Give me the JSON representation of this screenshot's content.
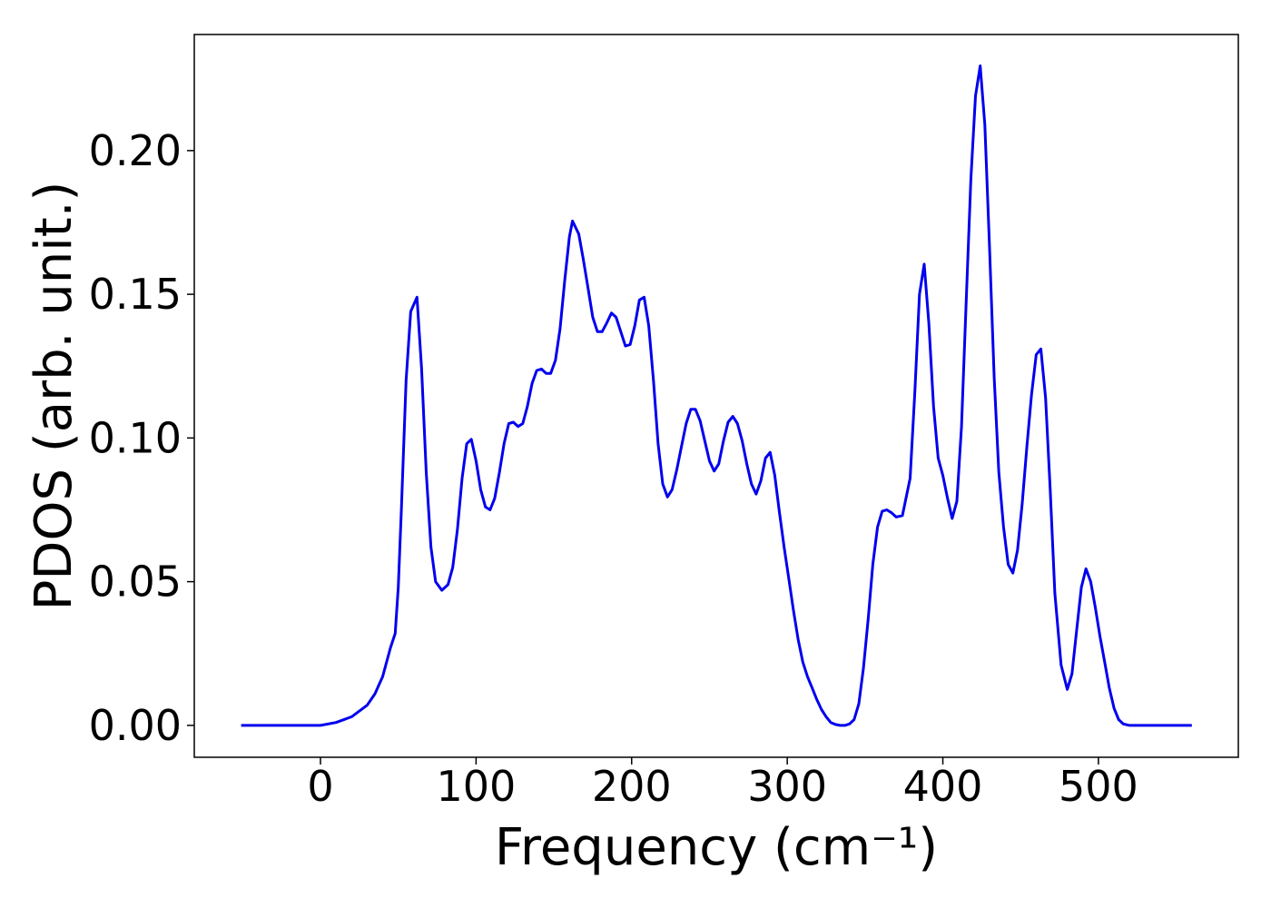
{
  "chart_data": {
    "type": "line",
    "xlabel": "Frequency (cm⁻¹)",
    "ylabel": "PDOS (arb. unit.)",
    "xlim": [
      -81.1,
      589.9
    ],
    "ylim": [
      -0.0111,
      0.2404
    ],
    "xticks": [
      0,
      100,
      200,
      300,
      400,
      500
    ],
    "yticks": [
      {
        "value": 0,
        "label": "0.00"
      },
      {
        "value": 0.05,
        "label": "0.05"
      },
      {
        "value": 0.1,
        "label": "0.10"
      },
      {
        "value": 0.15,
        "label": "0.15"
      },
      {
        "value": 0.2,
        "label": "0.20"
      }
    ],
    "series": [
      {
        "color": "#0000ee",
        "x": [
          -51,
          0,
          10,
          20,
          30,
          35,
          40,
          45,
          48,
          50,
          52,
          55,
          58,
          62,
          65,
          68,
          71,
          74,
          78,
          82,
          85,
          88,
          91,
          94,
          97,
          100,
          103,
          106,
          109,
          112,
          115,
          118,
          121,
          124,
          127,
          130,
          133,
          136,
          139,
          142,
          145,
          148,
          151,
          154,
          157,
          160,
          162,
          166,
          169,
          172,
          175,
          178,
          181,
          184,
          187,
          190,
          193,
          196,
          199,
          202,
          205,
          208,
          211,
          214,
          217,
          220,
          223,
          226,
          229,
          232,
          235,
          238,
          241,
          244,
          247,
          250,
          253,
          256,
          259,
          262,
          265,
          268,
          271,
          274,
          277,
          280,
          283,
          286,
          289,
          292,
          295,
          298,
          301,
          304,
          307,
          310,
          313,
          316,
          319,
          322,
          325,
          328,
          331,
          334,
          337,
          340,
          343,
          346,
          349,
          352,
          355,
          358,
          361,
          364,
          367,
          370,
          374,
          379,
          382,
          385,
          388,
          391,
          394,
          397,
          400,
          403,
          406,
          409,
          412,
          415,
          418,
          421,
          424,
          427,
          430,
          433,
          436,
          439,
          442,
          445,
          448,
          451,
          454,
          457,
          460,
          463,
          466,
          469,
          472,
          476,
          480,
          483,
          486,
          489,
          492,
          495,
          498,
          501,
          504,
          507,
          510,
          513,
          516,
          520,
          560
        ],
        "values": [
          0,
          0,
          0.001,
          0.003,
          0.007,
          0.011,
          0.017,
          0.027,
          0.032,
          0.048,
          0.075,
          0.12,
          0.144,
          0.149,
          0.124,
          0.088,
          0.062,
          0.05,
          0.047,
          0.049,
          0.055,
          0.068,
          0.086,
          0.098,
          0.0995,
          0.092,
          0.082,
          0.076,
          0.075,
          0.079,
          0.088,
          0.098,
          0.105,
          0.1055,
          0.104,
          0.105,
          0.111,
          0.119,
          0.1235,
          0.124,
          0.1225,
          0.1225,
          0.127,
          0.138,
          0.155,
          0.17,
          0.1755,
          0.171,
          0.162,
          0.152,
          0.142,
          0.137,
          0.137,
          0.14,
          0.1435,
          0.142,
          0.137,
          0.132,
          0.1325,
          0.139,
          0.148,
          0.149,
          0.139,
          0.12,
          0.098,
          0.084,
          0.0795,
          0.082,
          0.089,
          0.097,
          0.105,
          0.11,
          0.11,
          0.106,
          0.099,
          0.092,
          0.0885,
          0.091,
          0.099,
          0.1055,
          0.1075,
          0.105,
          0.099,
          0.091,
          0.084,
          0.0805,
          0.085,
          0.093,
          0.095,
          0.087,
          0.074,
          0.062,
          0.051,
          0.04,
          0.03,
          0.022,
          0.017,
          0.013,
          0.009,
          0.0055,
          0.003,
          0.001,
          0.0003,
          0,
          0,
          0.0005,
          0.002,
          0.0075,
          0.02,
          0.037,
          0.056,
          0.069,
          0.0745,
          0.075,
          0.074,
          0.0725,
          0.073,
          0.086,
          0.116,
          0.15,
          0.1605,
          0.14,
          0.111,
          0.093,
          0.087,
          0.079,
          0.072,
          0.078,
          0.104,
          0.147,
          0.19,
          0.219,
          0.2295,
          0.209,
          0.166,
          0.121,
          0.088,
          0.069,
          0.056,
          0.053,
          0.061,
          0.077,
          0.097,
          0.115,
          0.129,
          0.131,
          0.114,
          0.082,
          0.046,
          0.021,
          0.0125,
          0.018,
          0.033,
          0.048,
          0.0545,
          0.05,
          0.041,
          0.031,
          0.022,
          0.013,
          0.006,
          0.002,
          0.0005,
          0,
          0
        ]
      }
    ]
  }
}
